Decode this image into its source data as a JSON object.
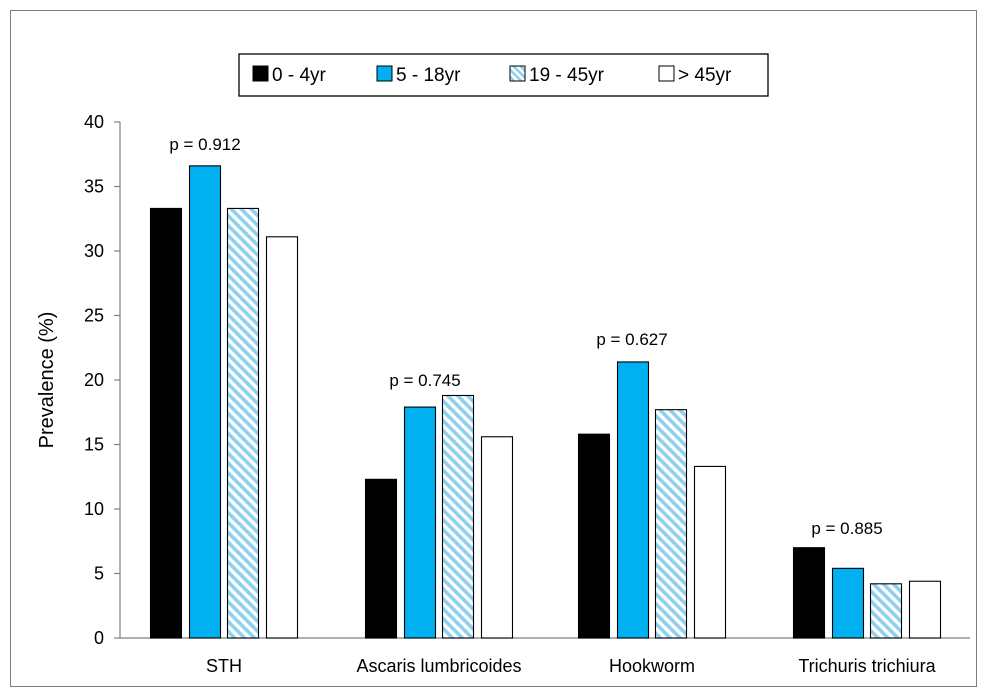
{
  "chart_data": {
    "type": "bar",
    "title": "",
    "xlabel": "",
    "ylabel": "Prevalence (%)",
    "ylim": [
      0,
      40
    ],
    "yticks": [
      0,
      5,
      10,
      15,
      20,
      25,
      30,
      35,
      40
    ],
    "grid": false,
    "legend_position": "top-center",
    "categories": [
      "STH",
      "Ascaris lumbricoides",
      "Hookworm",
      "Trichuris trichiura"
    ],
    "series": [
      {
        "name": "0 - 4yr",
        "values": [
          33.3,
          12.3,
          15.8,
          7.0
        ],
        "fill": "#000000",
        "pattern": "solid"
      },
      {
        "name": "5 - 18yr",
        "values": [
          36.6,
          17.9,
          21.4,
          5.4
        ],
        "fill": "#00b0f0",
        "pattern": "solid"
      },
      {
        "name": "19 - 45yr",
        "values": [
          33.3,
          18.8,
          17.7,
          4.2
        ],
        "fill": "#9dd6f0",
        "pattern": "diagonal-stripes"
      },
      {
        "name": "> 45yr",
        "values": [
          31.1,
          15.6,
          13.3,
          4.4
        ],
        "fill": "#ffffff",
        "pattern": "solid"
      }
    ],
    "annotations": [
      "p = 0.912",
      "p = 0.745",
      "p = 0.627",
      "p = 0.885"
    ]
  }
}
